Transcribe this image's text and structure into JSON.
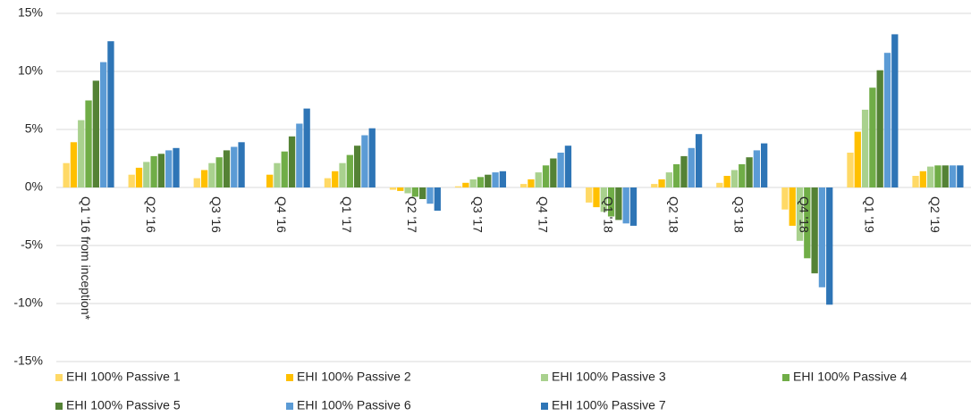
{
  "chart_data": {
    "type": "bar",
    "categories": [
      "Q1 '16 from inception*",
      "Q2 '16",
      "Q3 '16",
      "Q4 '16",
      "Q1 '17",
      "Q2 '17",
      "Q3 '17",
      "Q4 '17",
      "Q1 '18",
      "Q2 '18",
      "Q3 '18",
      "Q4 '18",
      "Q1 '19",
      "Q2 '19"
    ],
    "series": [
      {
        "name": "EHI 100% Passive 1",
        "color": "#ffd966",
        "values": [
          2.1,
          1.1,
          0.8,
          0,
          0.8,
          -0.2,
          0.1,
          0.3,
          -1.3,
          0.3,
          0.4,
          -1.9,
          3.0,
          1.0
        ]
      },
      {
        "name": "EHI 100% Passive 2",
        "color": "#ffc000",
        "values": [
          3.9,
          1.7,
          1.5,
          1.1,
          1.4,
          -0.3,
          0.4,
          0.7,
          -1.7,
          0.7,
          1.0,
          -3.3,
          4.8,
          1.4
        ]
      },
      {
        "name": "EHI 100% Passive 3",
        "color": "#a9d18e",
        "values": [
          5.8,
          2.2,
          2.1,
          2.1,
          2.1,
          -0.5,
          0.7,
          1.3,
          -2.1,
          1.3,
          1.5,
          -4.6,
          6.7,
          1.8
        ]
      },
      {
        "name": "EHI 100% Passive 4",
        "color": "#70ad47",
        "values": [
          7.5,
          2.7,
          2.6,
          3.1,
          2.8,
          -0.8,
          0.9,
          1.9,
          -2.5,
          2.0,
          2.0,
          -6.1,
          8.6,
          1.9
        ]
      },
      {
        "name": "EHI 100% Passive 5",
        "color": "#548235",
        "values": [
          9.2,
          2.9,
          3.2,
          4.4,
          3.6,
          -1.0,
          1.1,
          2.5,
          -2.8,
          2.7,
          2.6,
          -7.4,
          10.1,
          1.9
        ]
      },
      {
        "name": "EHI 100% Passive 6",
        "color": "#5b9bd5",
        "values": [
          10.8,
          3.2,
          3.5,
          5.5,
          4.5,
          -1.4,
          1.3,
          3.0,
          -3.1,
          3.4,
          3.2,
          -8.6,
          11.6,
          1.9
        ]
      },
      {
        "name": "EHI 100% Passive 7",
        "color": "#2e75b6",
        "values": [
          12.6,
          3.4,
          3.9,
          6.8,
          5.1,
          -2.0,
          1.4,
          3.6,
          -3.3,
          4.6,
          3.8,
          -10.1,
          13.2,
          1.9
        ]
      }
    ],
    "ylim": [
      -15,
      15
    ],
    "yticks": [
      {
        "value": -15,
        "label": "-15%"
      },
      {
        "value": -10,
        "label": "-10%"
      },
      {
        "value": -5,
        "label": "-5%"
      },
      {
        "value": 0,
        "label": "0%"
      },
      {
        "value": 5,
        "label": "5%"
      },
      {
        "value": 10,
        "label": "10%"
      },
      {
        "value": 15,
        "label": "15%"
      }
    ],
    "grid": true
  }
}
